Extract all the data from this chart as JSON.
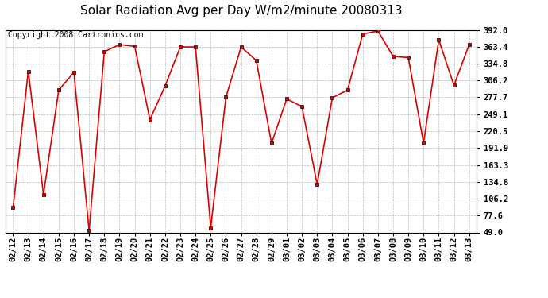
{
  "title": "Solar Radiation Avg per Day W/m2/minute 20080313",
  "copyright": "Copyright 2008 Cartronics.com",
  "x_labels": [
    "02/12",
    "02/13",
    "02/14",
    "02/15",
    "02/16",
    "02/17",
    "02/18",
    "02/19",
    "02/20",
    "02/21",
    "02/22",
    "02/23",
    "02/24",
    "02/25",
    "02/26",
    "02/27",
    "02/28",
    "02/29",
    "03/01",
    "03/02",
    "03/03",
    "03/04",
    "03/05",
    "03/06",
    "03/07",
    "03/08",
    "03/09",
    "03/10",
    "03/11",
    "03/12",
    "03/13"
  ],
  "y_values": [
    91.0,
    322.0,
    113.0,
    290.0,
    320.0,
    52.0,
    355.0,
    367.0,
    364.0,
    240.0,
    297.0,
    363.0,
    363.0,
    57.0,
    278.0,
    363.0,
    340.0,
    200.0,
    275.0,
    262.0,
    130.0,
    277.0,
    290.0,
    385.0,
    390.0,
    347.0,
    345.0,
    200.0,
    375.0,
    298.0,
    367.0
  ],
  "y_ticks": [
    49.0,
    77.6,
    106.2,
    134.8,
    163.3,
    191.9,
    220.5,
    249.1,
    277.7,
    306.2,
    334.8,
    363.4,
    392.0
  ],
  "y_tick_labels": [
    "49.0",
    "77.6",
    "106.2",
    "134.8",
    "163.3",
    "191.9",
    "220.5",
    "249.1",
    "277.7",
    "306.2",
    "334.8",
    "363.4",
    "392.0"
  ],
  "line_color": "#dd0000",
  "marker_color": "#dd0000",
  "bg_color": "#ffffff",
  "grid_color": "#bbbbbb",
  "title_fontsize": 11,
  "copyright_fontsize": 7,
  "tick_fontsize": 7.5,
  "ylim_min": 49.0,
  "ylim_max": 392.0
}
